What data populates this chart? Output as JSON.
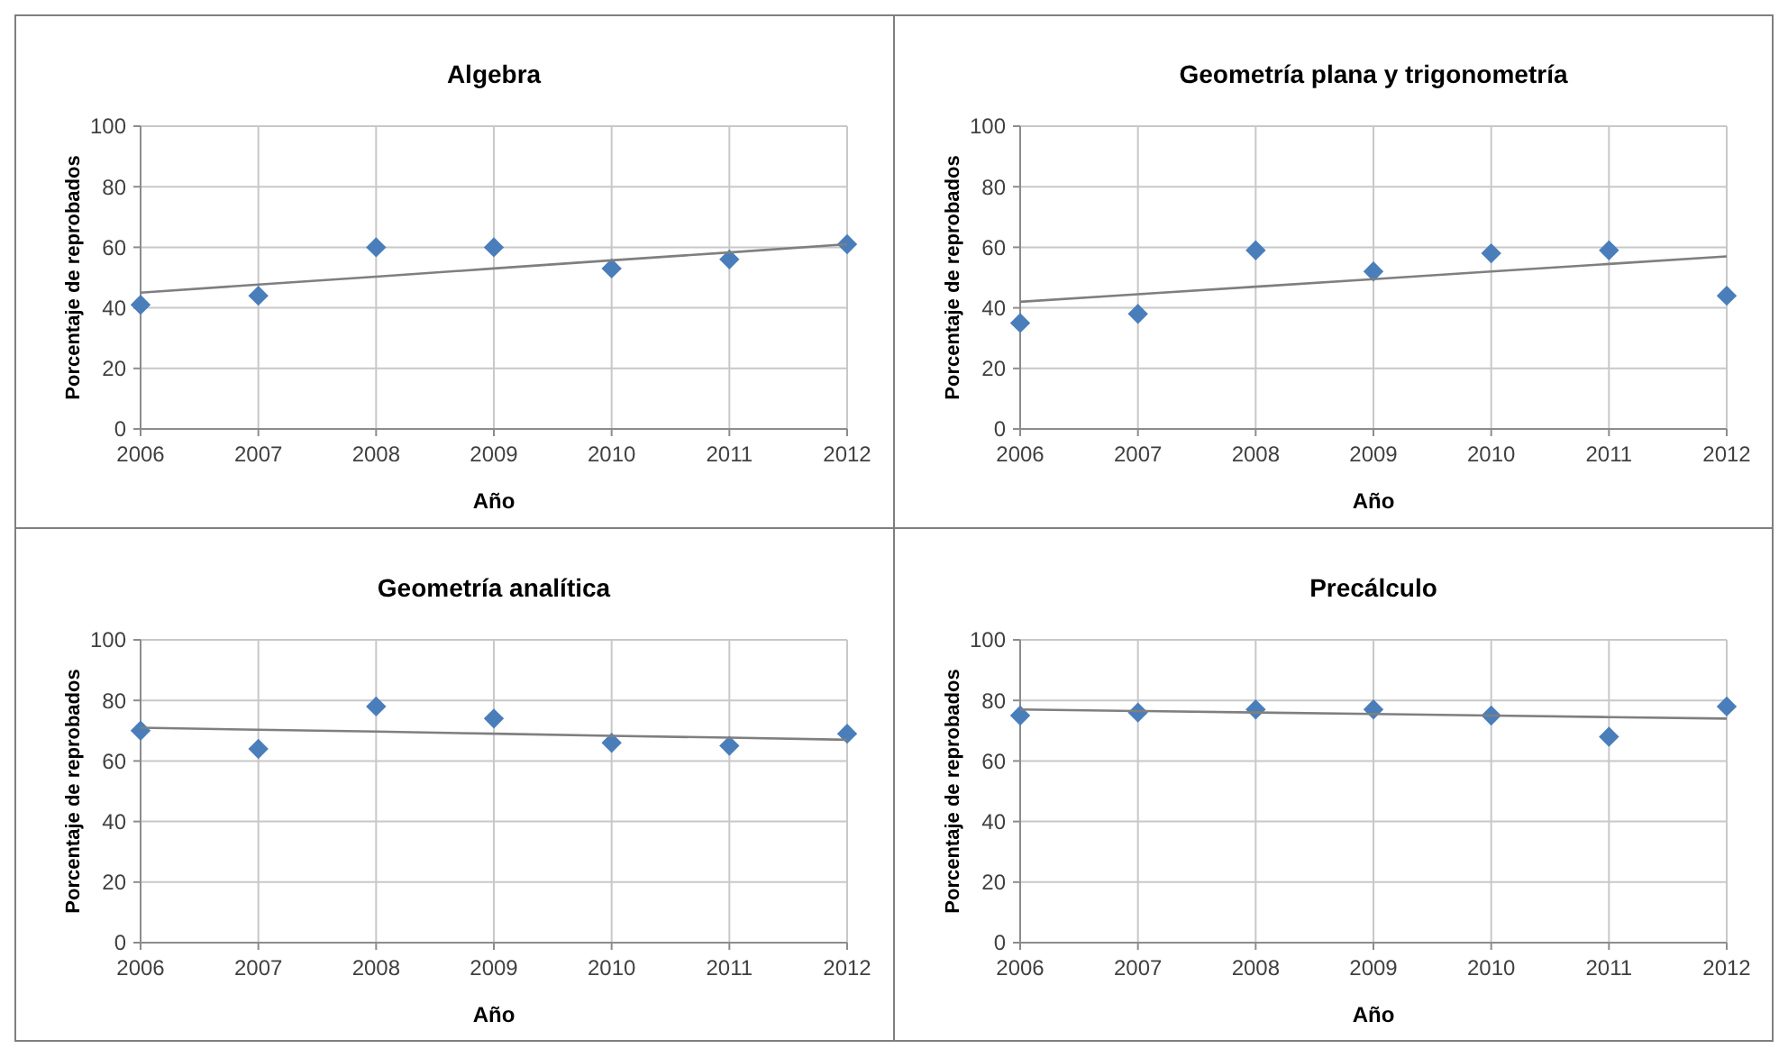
{
  "chart_data": [
    {
      "type": "scatter",
      "title": "Algebra",
      "xlabel": "Año",
      "ylabel": "Porcentaje de reprobados",
      "x": [
        2006,
        2007,
        2008,
        2009,
        2010,
        2011,
        2012
      ],
      "xlim": [
        2006,
        2012
      ],
      "xticks": [
        2006,
        2007,
        2008,
        2009,
        2010,
        2011,
        2012
      ],
      "ylim": [
        0,
        100
      ],
      "yticks": [
        0,
        20,
        40,
        60,
        80,
        100
      ],
      "grid": true,
      "series": [
        {
          "color": "#4a7ebb",
          "marker": "diamond",
          "values": [
            41,
            44,
            60,
            60,
            53,
            56,
            61
          ]
        },
        {
          "type": "line",
          "marker": "none",
          "color": "#7f7f7f",
          "values": [
            45,
            47.7,
            50.3,
            53,
            55.7,
            58.3,
            61
          ]
        }
      ]
    },
    {
      "type": "scatter",
      "title": "Geometría plana  y trigonometría",
      "xlabel": "Año",
      "ylabel": "Porcentaje de reprobados",
      "x": [
        2006,
        2007,
        2008,
        2009,
        2010,
        2011,
        2012
      ],
      "xlim": [
        2006,
        2012
      ],
      "xticks": [
        2006,
        2007,
        2008,
        2009,
        2010,
        2011,
        2012
      ],
      "ylim": [
        0,
        100
      ],
      "yticks": [
        0,
        20,
        40,
        60,
        80,
        100
      ],
      "grid": true,
      "series": [
        {
          "color": "#4a7ebb",
          "marker": "diamond",
          "values": [
            35,
            38,
            59,
            52,
            58,
            59,
            44
          ]
        },
        {
          "type": "line",
          "marker": "none",
          "color": "#7f7f7f",
          "values": [
            42,
            44.5,
            47,
            49.5,
            52,
            54.5,
            57
          ]
        }
      ]
    },
    {
      "type": "scatter",
      "title": "Geometría analítica",
      "xlabel": "Año",
      "ylabel": "Porcentaje de reprobados",
      "x": [
        2006,
        2007,
        2008,
        2009,
        2010,
        2011,
        2012
      ],
      "xlim": [
        2006,
        2012
      ],
      "xticks": [
        2006,
        2007,
        2008,
        2009,
        2010,
        2011,
        2012
      ],
      "ylim": [
        0,
        100
      ],
      "yticks": [
        0,
        20,
        40,
        60,
        80,
        100
      ],
      "grid": true,
      "series": [
        {
          "color": "#4a7ebb",
          "marker": "diamond",
          "values": [
            70,
            64,
            78,
            74,
            66,
            65,
            69
          ]
        },
        {
          "type": "line",
          "marker": "none",
          "color": "#7f7f7f",
          "values": [
            71,
            70.3,
            69.7,
            69,
            68.3,
            67.7,
            67
          ]
        }
      ]
    },
    {
      "type": "scatter",
      "title": "Precálculo",
      "xlabel": "Año",
      "ylabel": "Porcentaje de reprobados",
      "x": [
        2006,
        2007,
        2008,
        2009,
        2010,
        2011,
        2012
      ],
      "xlim": [
        2006,
        2012
      ],
      "xticks": [
        2006,
        2007,
        2008,
        2009,
        2010,
        2011,
        2012
      ],
      "ylim": [
        0,
        100
      ],
      "yticks": [
        0,
        20,
        40,
        60,
        80,
        100
      ],
      "grid": true,
      "series": [
        {
          "color": "#4a7ebb",
          "marker": "diamond",
          "values": [
            75,
            76,
            77,
            77,
            75,
            68,
            78
          ]
        },
        {
          "type": "line",
          "marker": "none",
          "color": "#7f7f7f",
          "values": [
            77,
            76.5,
            76,
            75.5,
            75,
            74.5,
            74
          ]
        }
      ]
    }
  ]
}
